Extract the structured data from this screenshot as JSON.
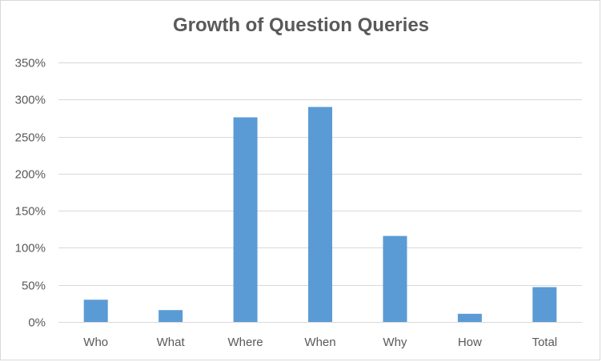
{
  "chart_data": {
    "type": "bar",
    "title": "Growth of Question Queries",
    "categories": [
      "Who",
      "What",
      "Where",
      "When",
      "Why",
      "How",
      "Total"
    ],
    "series": [
      {
        "values": [
          30,
          16,
          276,
          290,
          116,
          11,
          47
        ],
        "color": "#5b9bd5"
      }
    ],
    "ylim": [
      0,
      350
    ],
    "yticks": [
      0,
      50,
      100,
      150,
      200,
      250,
      300,
      350
    ],
    "ytick_labels": [
      "0%",
      "50%",
      "100%",
      "150%",
      "200%",
      "250%",
      "300%",
      "350%"
    ],
    "grid": true,
    "legend": "none",
    "xlabel": "",
    "ylabel": ""
  }
}
